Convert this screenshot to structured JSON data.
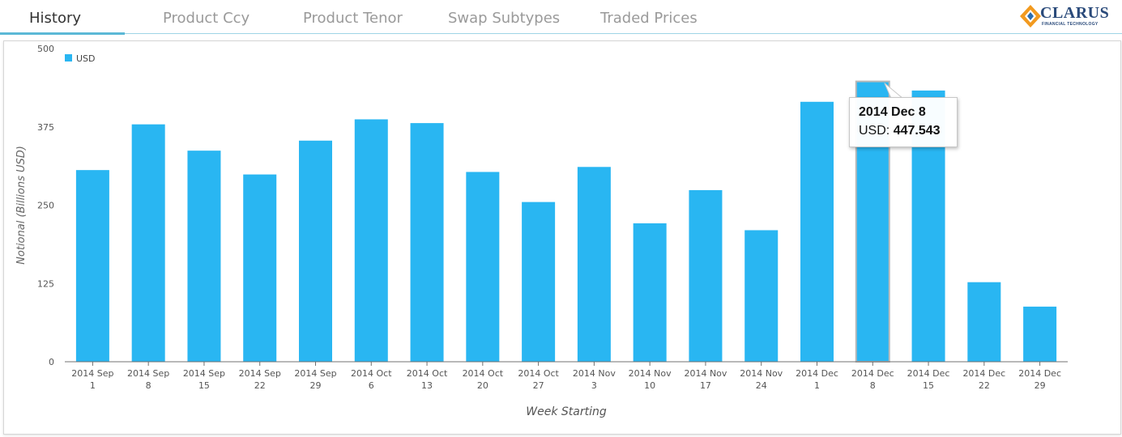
{
  "tabs": [
    {
      "label": "History",
      "active": true
    },
    {
      "label": "Product Ccy",
      "active": false
    },
    {
      "label": "Product Tenor",
      "active": false
    },
    {
      "label": "Swap Subtypes",
      "active": false
    },
    {
      "label": "Traded Prices",
      "active": false
    }
  ],
  "logo": {
    "name": "CLARUS",
    "tagline": "FINANCIAL TECHNOLOGY"
  },
  "chart_data": {
    "type": "bar",
    "xlabel": "Week Starting",
    "ylabel": "Notional (Billions USD)",
    "ylim": [
      0,
      500
    ],
    "yticks": [
      0,
      125,
      250,
      375,
      500
    ],
    "grid": false,
    "legend": "top-left",
    "categories": [
      [
        "2014 Sep",
        "1"
      ],
      [
        "2014 Sep",
        "8"
      ],
      [
        "2014 Sep",
        "15"
      ],
      [
        "2014 Sep",
        "22"
      ],
      [
        "2014 Sep",
        "29"
      ],
      [
        "2014 Oct",
        "6"
      ],
      [
        "2014 Oct",
        "13"
      ],
      [
        "2014 Oct",
        "20"
      ],
      [
        "2014 Oct",
        "27"
      ],
      [
        "2014 Nov",
        "3"
      ],
      [
        "2014 Nov",
        "10"
      ],
      [
        "2014 Nov",
        "17"
      ],
      [
        "2014 Nov",
        "24"
      ],
      [
        "2014 Dec",
        "1"
      ],
      [
        "2014 Dec",
        "8"
      ],
      [
        "2014 Dec",
        "15"
      ],
      [
        "2014 Dec",
        "22"
      ],
      [
        "2014 Dec",
        "29"
      ]
    ],
    "series": [
      {
        "name": "USD",
        "color": "#29b6f2",
        "values": [
          306,
          379,
          337,
          299,
          353,
          387,
          381,
          303,
          255,
          311,
          221,
          274,
          210,
          415,
          447.543,
          433,
          127,
          88
        ]
      }
    ],
    "highlight_index": 14,
    "tooltip": {
      "title": "2014 Dec 8",
      "series_label": "USD:",
      "value": "447.543"
    }
  }
}
